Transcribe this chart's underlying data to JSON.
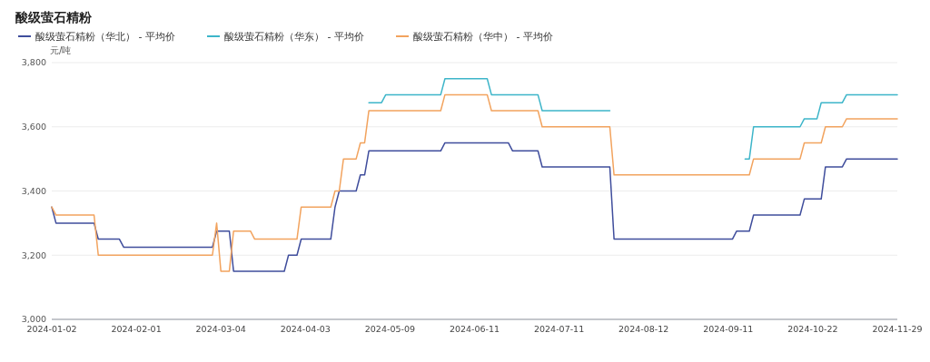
{
  "chart_data": {
    "type": "line",
    "title": "酸级萤石精粉",
    "ylabel": "元/吨",
    "categories": [
      "2024-01-02",
      null,
      null,
      null,
      null,
      null,
      null,
      null,
      null,
      null,
      null,
      null,
      null,
      null,
      null,
      null,
      null,
      null,
      null,
      null,
      "2024-02-01",
      null,
      null,
      null,
      null,
      null,
      null,
      null,
      null,
      null,
      null,
      null,
      null,
      null,
      null,
      null,
      null,
      null,
      null,
      null,
      "2024-03-04",
      null,
      null,
      null,
      null,
      null,
      null,
      null,
      null,
      null,
      null,
      null,
      null,
      null,
      null,
      null,
      null,
      null,
      null,
      null,
      "2024-04-03",
      null,
      null,
      null,
      null,
      null,
      null,
      null,
      null,
      null,
      null,
      null,
      null,
      null,
      null,
      null,
      null,
      null,
      null,
      null,
      "2024-05-09",
      null,
      null,
      null,
      null,
      null,
      null,
      null,
      null,
      null,
      null,
      null,
      null,
      null,
      null,
      null,
      null,
      null,
      null,
      null,
      "2024-06-11",
      null,
      null,
      null,
      null,
      null,
      null,
      null,
      null,
      null,
      null,
      null,
      null,
      null,
      null,
      null,
      null,
      null,
      null,
      null,
      "2024-07-11",
      null,
      null,
      null,
      null,
      null,
      null,
      null,
      null,
      null,
      null,
      null,
      null,
      null,
      null,
      null,
      null,
      null,
      null,
      null,
      "2024-08-12",
      null,
      null,
      null,
      null,
      null,
      null,
      null,
      null,
      null,
      null,
      null,
      null,
      null,
      null,
      null,
      null,
      null,
      null,
      null,
      "2024-09-11",
      null,
      null,
      null,
      null,
      null,
      null,
      null,
      null,
      null,
      null,
      null,
      null,
      null,
      null,
      null,
      null,
      null,
      null,
      null,
      "2024-10-22",
      null,
      null,
      null,
      null,
      null,
      null,
      null,
      null,
      null,
      null,
      null,
      null,
      null,
      null,
      null,
      null,
      null,
      null,
      null,
      "2024-11-29"
    ],
    "series": [
      {
        "name": "酸级萤石精粉（华北） - 平均价",
        "color": "#3f4d9c",
        "values": [
          3350,
          3300,
          3300,
          3300,
          3300,
          3300,
          3300,
          3300,
          3300,
          3300,
          3300,
          3250,
          3250,
          3250,
          3250,
          3250,
          3250,
          3225,
          3225,
          3225,
          3225,
          3225,
          3225,
          3225,
          3225,
          3225,
          3225,
          3225,
          3225,
          3225,
          3225,
          3225,
          3225,
          3225,
          3225,
          3225,
          3225,
          3225,
          3225,
          3275,
          3275,
          3275,
          3275,
          3150,
          3150,
          3150,
          3150,
          3150,
          3150,
          3150,
          3150,
          3150,
          3150,
          3150,
          3150,
          3150,
          3200,
          3200,
          3200,
          3250,
          3250,
          3250,
          3250,
          3250,
          3250,
          3250,
          3250,
          3350,
          3400,
          3400,
          3400,
          3400,
          3400,
          3450,
          3450,
          3525,
          3525,
          3525,
          3525,
          3525,
          3525,
          3525,
          3525,
          3525,
          3525,
          3525,
          3525,
          3525,
          3525,
          3525,
          3525,
          3525,
          3525,
          3550,
          3550,
          3550,
          3550,
          3550,
          3550,
          3550,
          3550,
          3550,
          3550,
          3550,
          3550,
          3550,
          3550,
          3550,
          3550,
          3525,
          3525,
          3525,
          3525,
          3525,
          3525,
          3525,
          3475,
          3475,
          3475,
          3475,
          3475,
          3475,
          3475,
          3475,
          3475,
          3475,
          3475,
          3475,
          3475,
          3475,
          3475,
          3475,
          3475,
          3250,
          3250,
          3250,
          3250,
          3250,
          3250,
          3250,
          3250,
          3250,
          3250,
          3250,
          3250,
          3250,
          3250,
          3250,
          3250,
          3250,
          3250,
          3250,
          3250,
          3250,
          3250,
          3250,
          3250,
          3250,
          3250,
          3250,
          3250,
          3250,
          3275,
          3275,
          3275,
          3275,
          3325,
          3325,
          3325,
          3325,
          3325,
          3325,
          3325,
          3325,
          3325,
          3325,
          3325,
          3325,
          3375,
          3375,
          3375,
          3375,
          3375,
          3475,
          3475,
          3475,
          3475,
          3475,
          3500,
          3500,
          3500,
          3500,
          3500,
          3500,
          3500,
          3500,
          3500,
          3500,
          3500,
          3500,
          3500
        ]
      },
      {
        "name": "酸级萤石精粉（华东） - 平均价",
        "color": "#3db5c9",
        "values": [
          null,
          null,
          null,
          null,
          null,
          null,
          null,
          null,
          null,
          null,
          null,
          null,
          null,
          null,
          null,
          null,
          null,
          null,
          null,
          null,
          null,
          null,
          null,
          null,
          null,
          null,
          null,
          null,
          null,
          null,
          null,
          null,
          null,
          null,
          null,
          null,
          null,
          null,
          null,
          null,
          null,
          null,
          null,
          null,
          null,
          null,
          null,
          null,
          null,
          null,
          null,
          null,
          null,
          null,
          null,
          null,
          null,
          null,
          null,
          null,
          null,
          null,
          null,
          null,
          null,
          null,
          null,
          null,
          null,
          null,
          null,
          null,
          null,
          null,
          null,
          3675,
          3675,
          3675,
          3675,
          3700,
          3700,
          3700,
          3700,
          3700,
          3700,
          3700,
          3700,
          3700,
          3700,
          3700,
          3700,
          3700,
          3700,
          3750,
          3750,
          3750,
          3750,
          3750,
          3750,
          3750,
          3750,
          3750,
          3750,
          3750,
          3700,
          3700,
          3700,
          3700,
          3700,
          3700,
          3700,
          3700,
          3700,
          3700,
          3700,
          3700,
          3650,
          3650,
          3650,
          3650,
          3650,
          3650,
          3650,
          3650,
          3650,
          3650,
          3650,
          3650,
          3650,
          3650,
          3650,
          3650,
          3650,
          null,
          null,
          null,
          null,
          null,
          null,
          null,
          null,
          null,
          null,
          null,
          null,
          null,
          null,
          null,
          null,
          null,
          null,
          null,
          null,
          null,
          null,
          null,
          null,
          null,
          null,
          null,
          null,
          null,
          null,
          null,
          3500,
          3500,
          3600,
          3600,
          3600,
          3600,
          3600,
          3600,
          3600,
          3600,
          3600,
          3600,
          3600,
          3600,
          3625,
          3625,
          3625,
          3625,
          3675,
          3675,
          3675,
          3675,
          3675,
          3675,
          3700,
          3700,
          3700,
          3700,
          3700,
          3700,
          3700,
          3700,
          3700,
          3700,
          3700,
          3700,
          3700
        ]
      },
      {
        "name": "酸级萤石精粉（华中） - 平均价",
        "color": "#f2a35e",
        "values": [
          3350,
          3325,
          3325,
          3325,
          3325,
          3325,
          3325,
          3325,
          3325,
          3325,
          3325,
          3200,
          3200,
          3200,
          3200,
          3200,
          3200,
          3200,
          3200,
          3200,
          3200,
          3200,
          3200,
          3200,
          3200,
          3200,
          3200,
          3200,
          3200,
          3200,
          3200,
          3200,
          3200,
          3200,
          3200,
          3200,
          3200,
          3200,
          3200,
          3300,
          3150,
          3150,
          3150,
          3275,
          3275,
          3275,
          3275,
          3275,
          3250,
          3250,
          3250,
          3250,
          3250,
          3250,
          3250,
          3250,
          3250,
          3250,
          3250,
          3350,
          3350,
          3350,
          3350,
          3350,
          3350,
          3350,
          3350,
          3400,
          3400,
          3500,
          3500,
          3500,
          3500,
          3550,
          3550,
          3650,
          3650,
          3650,
          3650,
          3650,
          3650,
          3650,
          3650,
          3650,
          3650,
          3650,
          3650,
          3650,
          3650,
          3650,
          3650,
          3650,
          3650,
          3700,
          3700,
          3700,
          3700,
          3700,
          3700,
          3700,
          3700,
          3700,
          3700,
          3700,
          3650,
          3650,
          3650,
          3650,
          3650,
          3650,
          3650,
          3650,
          3650,
          3650,
          3650,
          3650,
          3600,
          3600,
          3600,
          3600,
          3600,
          3600,
          3600,
          3600,
          3600,
          3600,
          3600,
          3600,
          3600,
          3600,
          3600,
          3600,
          3600,
          3450,
          3450,
          3450,
          3450,
          3450,
          3450,
          3450,
          3450,
          3450,
          3450,
          3450,
          3450,
          3450,
          3450,
          3450,
          3450,
          3450,
          3450,
          3450,
          3450,
          3450,
          3450,
          3450,
          3450,
          3450,
          3450,
          3450,
          3450,
          3450,
          3450,
          3450,
          3450,
          3450,
          3500,
          3500,
          3500,
          3500,
          3500,
          3500,
          3500,
          3500,
          3500,
          3500,
          3500,
          3500,
          3550,
          3550,
          3550,
          3550,
          3550,
          3600,
          3600,
          3600,
          3600,
          3600,
          3625,
          3625,
          3625,
          3625,
          3625,
          3625,
          3625,
          3625,
          3625,
          3625,
          3625,
          3625,
          3625
        ]
      }
    ],
    "ylim": [
      3000,
      3800
    ],
    "yticks": [
      {
        "value": 3000,
        "label": "3,000"
      },
      {
        "value": 3200,
        "label": "3,200"
      },
      {
        "value": 3400,
        "label": "3,400"
      },
      {
        "value": 3600,
        "label": "3,600"
      },
      {
        "value": 3800,
        "label": "3,800"
      }
    ],
    "grid": "y",
    "legend": "top left",
    "marker": "none",
    "line_style": "solid"
  }
}
